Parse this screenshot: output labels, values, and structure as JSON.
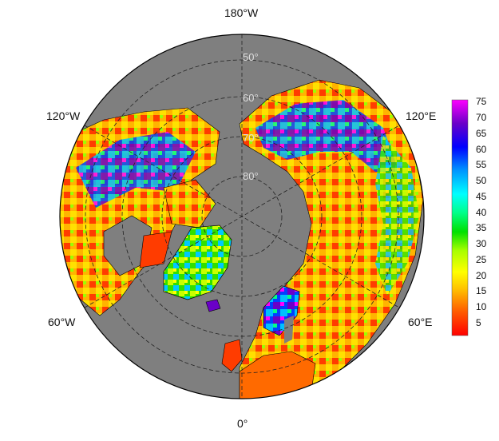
{
  "map": {
    "projection": "north-polar-stereographic",
    "ocean_color": "#7f7f7f",
    "land_outline_color": "#000000",
    "graticule_style": "dashed",
    "longitude_labels": {
      "top": "180°W",
      "upper_left": "120°W",
      "upper_right": "120°E",
      "lower_left": "60°W",
      "lower_right": "60°E",
      "bottom": "0°"
    },
    "latitude_labels": [
      "50°",
      "60°",
      "70°",
      "80°"
    ]
  },
  "colorbar": {
    "min": 0,
    "max": 77,
    "ticks": [
      "75",
      "70",
      "65",
      "60",
      "55",
      "50",
      "45",
      "40",
      "35",
      "30",
      "25",
      "20",
      "15",
      "10",
      "5"
    ],
    "stops": [
      "#ff0000",
      "#ff5a00",
      "#ffc400",
      "#ffff00",
      "#a8ff00",
      "#00e000",
      "#00ff88",
      "#00ffff",
      "#0096ff",
      "#0000ff",
      "#6a00c8",
      "#ff00ff"
    ]
  }
}
